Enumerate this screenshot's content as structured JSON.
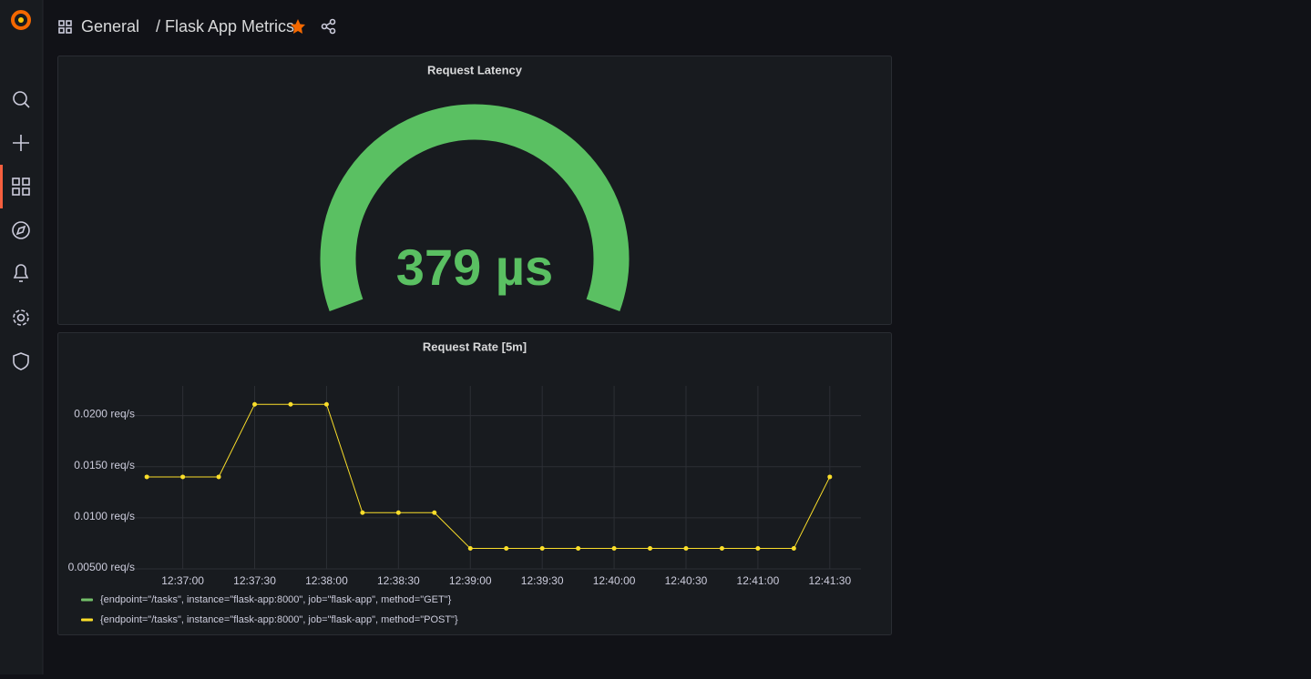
{
  "header": {
    "folder": "General",
    "title": "/ Flask App Metrics"
  },
  "chart_data": [
    {
      "type": "gauge",
      "title": "Request Latency",
      "value": 379,
      "value_label": "379 µs",
      "color": "#5ac062"
    },
    {
      "type": "line",
      "title": "Request Rate [5m]",
      "x": [
        "12:36:45",
        "12:37:00",
        "12:37:15",
        "12:37:30",
        "12:37:45",
        "12:38:00",
        "12:38:15",
        "12:38:30",
        "12:38:45",
        "12:39:00",
        "12:39:15",
        "12:39:30",
        "12:39:45",
        "12:40:00",
        "12:40:15",
        "12:40:30",
        "12:40:45",
        "12:41:00",
        "12:41:15",
        "12:41:30"
      ],
      "series": [
        {
          "name": "{endpoint=\"/tasks\", instance=\"flask-app:8000\", job=\"flask-app\", method=\"GET\"}",
          "color": "#73bf69",
          "values": [
            null,
            null,
            null,
            null,
            null,
            null,
            null,
            null,
            null,
            null,
            null,
            null,
            null,
            null,
            null,
            null,
            null,
            null,
            null,
            null
          ]
        },
        {
          "name": "{endpoint=\"/tasks\", instance=\"flask-app:8000\", job=\"flask-app\", method=\"POST\"}",
          "color": "#fade2a",
          "values": [
            0.014,
            0.014,
            0.014,
            0.0211,
            0.0211,
            0.0211,
            0.0105,
            0.0105,
            0.0105,
            0.007,
            0.007,
            0.007,
            0.007,
            0.007,
            0.007,
            0.007,
            0.007,
            0.007,
            0.007,
            0.014
          ]
        }
      ],
      "xlim": [
        "12:36:40",
        "12:41:43"
      ],
      "xticks": [
        "12:37:00",
        "12:37:30",
        "12:38:00",
        "12:38:30",
        "12:39:00",
        "12:39:30",
        "12:40:00",
        "12:40:30",
        "12:41:00",
        "12:41:30"
      ],
      "ylim": [
        0.005,
        0.0229
      ],
      "yticks": [
        {
          "value": 0.005,
          "label": "0.00500 req/s"
        },
        {
          "value": 0.01,
          "label": "0.0100 req/s"
        },
        {
          "value": 0.015,
          "label": "0.0150 req/s"
        },
        {
          "value": 0.02,
          "label": "0.0200 req/s"
        }
      ],
      "grid": true
    }
  ]
}
